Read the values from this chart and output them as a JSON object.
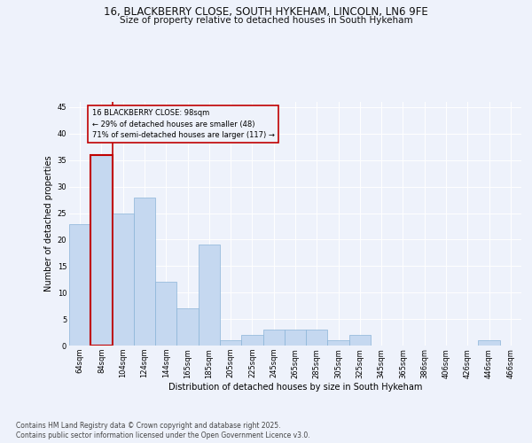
{
  "title_line1": "16, BLACKBERRY CLOSE, SOUTH HYKEHAM, LINCOLN, LN6 9FE",
  "title_line2": "Size of property relative to detached houses in South Hykeham",
  "xlabel": "Distribution of detached houses by size in South Hykeham",
  "ylabel": "Number of detached properties",
  "categories": [
    "64sqm",
    "84sqm",
    "104sqm",
    "124sqm",
    "144sqm",
    "165sqm",
    "185sqm",
    "205sqm",
    "225sqm",
    "245sqm",
    "265sqm",
    "285sqm",
    "305sqm",
    "325sqm",
    "345sqm",
    "365sqm",
    "386sqm",
    "406sqm",
    "426sqm",
    "446sqm",
    "466sqm"
  ],
  "values": [
    23,
    36,
    25,
    28,
    12,
    7,
    19,
    1,
    2,
    3,
    3,
    3,
    1,
    2,
    0,
    0,
    0,
    0,
    0,
    1,
    0
  ],
  "bar_color": "#c5d8f0",
  "bar_edge_color": "#8ab4d8",
  "highlight_bar_index": 1,
  "highlight_bar_edge_color": "#c00000",
  "highlight_bar_linewidth": 1.5,
  "property_line_color": "#c00000",
  "annotation_text": "16 BLACKBERRY CLOSE: 98sqm\n← 29% of detached houses are smaller (48)\n71% of semi-detached houses are larger (117) →",
  "annotation_box_color": "#c00000",
  "background_color": "#eef2fb",
  "grid_color": "#ffffff",
  "ylim": [
    0,
    46
  ],
  "yticks": [
    0,
    5,
    10,
    15,
    20,
    25,
    30,
    35,
    40,
    45
  ],
  "footer_line1": "Contains HM Land Registry data © Crown copyright and database right 2025.",
  "footer_line2": "Contains public sector information licensed under the Open Government Licence v3.0.",
  "title_fontsize": 8.5,
  "subtitle_fontsize": 7.5,
  "axis_label_fontsize": 7,
  "tick_fontsize": 6,
  "annotation_fontsize": 6,
  "footer_fontsize": 5.5
}
